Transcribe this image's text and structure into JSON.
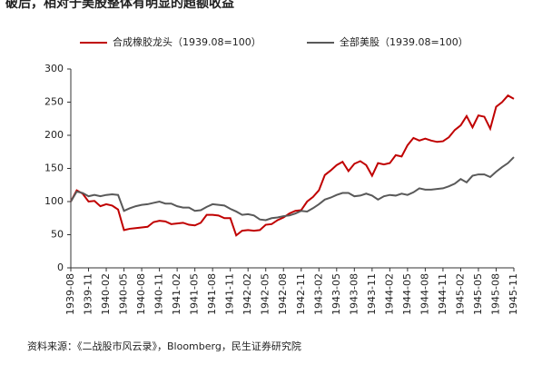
{
  "chart_data": {
    "type": "line",
    "title": "破后，相对于美股整体有明显的超额收益",
    "source": "资料来源：《二战股市风云录》，Bloomberg，民生证券研究院",
    "categories": [
      "1939-08",
      null,
      null,
      "1939-11",
      null,
      null,
      "1940-02",
      null,
      null,
      "1940-05",
      null,
      null,
      "1940-08",
      null,
      null,
      "1940-11",
      null,
      null,
      "1941-02",
      null,
      null,
      "1941-05",
      null,
      null,
      "1941-08",
      null,
      null,
      "1941-11",
      null,
      null,
      "1942-02",
      null,
      null,
      "1942-05",
      null,
      null,
      "1942-08",
      null,
      null,
      "1942-11",
      null,
      null,
      "1943-02",
      null,
      null,
      "1943-05",
      null,
      null,
      "1943-08",
      null,
      null,
      "1943-11",
      null,
      null,
      "1944-02",
      null,
      null,
      "1944-05",
      null,
      null,
      "1944-08",
      null,
      null,
      "1944-11",
      null,
      null,
      "1945-02",
      null,
      null,
      "1945-05",
      null,
      null,
      "1945-08",
      null,
      null,
      "1945-11"
    ],
    "series": [
      {
        "name": "合成橡胶龙头（1939.08=100）",
        "color": "#c00000",
        "values": [
          100,
          117,
          112,
          100,
          101,
          93,
          96,
          94,
          88,
          57,
          59,
          60,
          61,
          62,
          69,
          71,
          70,
          66,
          67,
          68,
          65,
          64,
          68,
          80,
          80,
          79,
          75,
          75,
          49,
          56,
          57,
          56,
          57,
          65,
          66,
          72,
          76,
          82,
          86,
          87,
          100,
          107,
          117,
          140,
          147,
          155,
          160,
          146,
          157,
          161,
          155,
          139,
          158,
          156,
          158,
          170,
          168,
          185,
          196,
          192,
          195,
          192,
          190,
          191,
          197,
          208,
          215,
          229,
          212,
          230,
          228,
          210,
          243,
          250,
          260,
          255
        ]
      },
      {
        "name": "全部美股（1939.08=100）",
        "color": "#595959",
        "values": [
          100,
          115,
          113,
          108,
          110,
          108,
          110,
          111,
          110,
          86,
          90,
          93,
          95,
          96,
          98,
          100,
          97,
          97,
          93,
          91,
          91,
          86,
          87,
          92,
          96,
          95,
          94,
          89,
          85,
          80,
          81,
          79,
          73,
          72,
          75,
          76,
          78,
          79,
          82,
          86,
          85,
          90,
          96,
          103,
          106,
          110,
          113,
          113,
          108,
          109,
          112,
          109,
          103,
          108,
          110,
          109,
          112,
          110,
          114,
          120,
          118,
          118,
          119,
          120,
          123,
          127,
          134,
          129,
          139,
          141,
          141,
          137,
          145,
          152,
          158,
          167
        ]
      }
    ],
    "ylim": [
      0,
      300
    ],
    "yticks": [
      0,
      50,
      100,
      150,
      200,
      250,
      300
    ]
  }
}
